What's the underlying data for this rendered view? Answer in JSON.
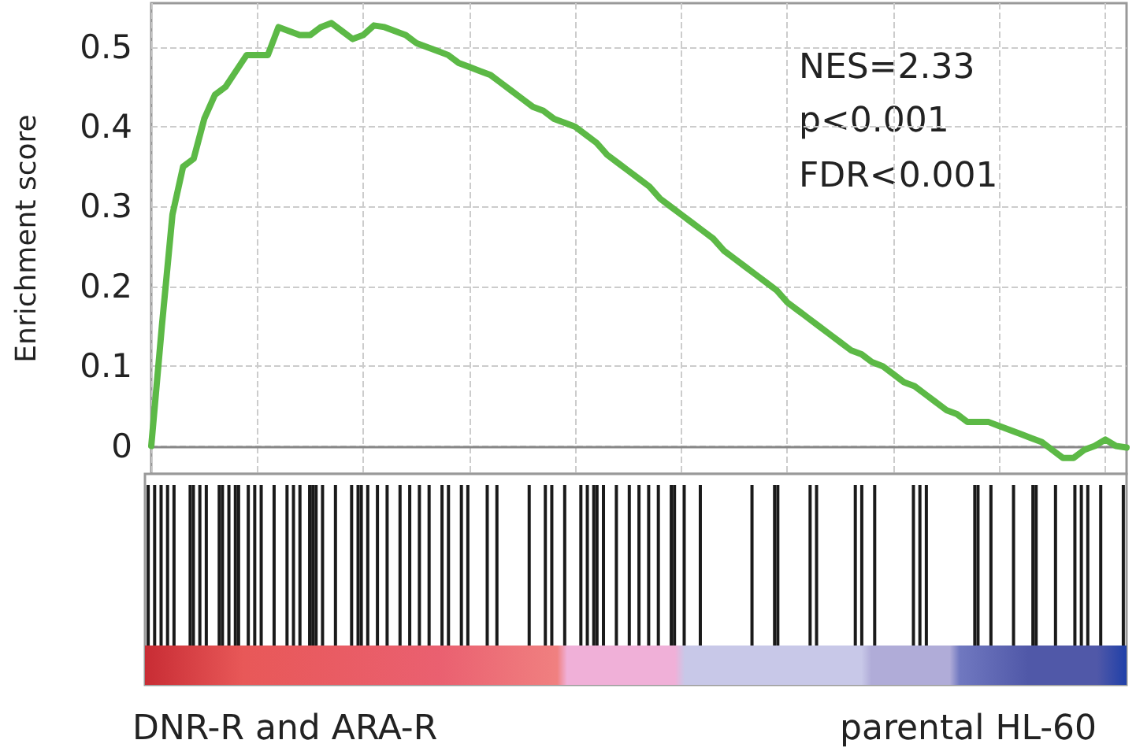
{
  "chart_data": {
    "type": "line",
    "ylabel": "Enrichment score",
    "categories": [
      null,
      null,
      null,
      null,
      null,
      null,
      null,
      null,
      null,
      null,
      null,
      null,
      null,
      null,
      null,
      null,
      null,
      null,
      null,
      null,
      null,
      null,
      null,
      null,
      null,
      null,
      null,
      null,
      null,
      null,
      null,
      null,
      null,
      null,
      null,
      null,
      null,
      null,
      null,
      null,
      null,
      null,
      null,
      null,
      null,
      null,
      null,
      null,
      null,
      null,
      null,
      null,
      null,
      null,
      null,
      null,
      null,
      null,
      null,
      null,
      null,
      null,
      null,
      null,
      null,
      null,
      null,
      null,
      null,
      null,
      null,
      null,
      null,
      null,
      null,
      null,
      null,
      null,
      null,
      null,
      null,
      null,
      null,
      null,
      null,
      null,
      null,
      null,
      null,
      null,
      null,
      null,
      null
    ],
    "series": [
      {
        "color": "#5cb946",
        "values": [
          0,
          0.15,
          0.29,
          0.35,
          0.36,
          0.41,
          0.44,
          0.45,
          0.47,
          0.49,
          0.49,
          0.49,
          0.525,
          0.52,
          0.515,
          0.515,
          0.525,
          0.53,
          0.52,
          0.51,
          0.515,
          0.527,
          0.525,
          0.52,
          0.515,
          0.505,
          0.5,
          0.495,
          0.49,
          0.48,
          0.475,
          0.47,
          0.465,
          0.455,
          0.445,
          0.435,
          0.425,
          0.42,
          0.41,
          0.405,
          0.4,
          0.39,
          0.38,
          0.365,
          0.355,
          0.345,
          0.335,
          0.325,
          0.31,
          0.3,
          0.29,
          0.28,
          0.27,
          0.26,
          0.245,
          0.235,
          0.225,
          0.215,
          0.205,
          0.195,
          0.18,
          0.17,
          0.16,
          0.15,
          0.14,
          0.13,
          0.12,
          0.115,
          0.105,
          0.1,
          0.09,
          0.08,
          0.075,
          0.065,
          0.055,
          0.045,
          0.04,
          0.03,
          0.03,
          0.03,
          0.025,
          0.02,
          0.015,
          0.01,
          0.005,
          -0.005,
          -0.015,
          -0.015,
          -0.005,
          0,
          0.008,
          0,
          -0.002
        ]
      }
    ],
    "ylim": [
      -0.035,
      0.555
    ],
    "yticks": [
      0,
      0.1,
      0.2,
      0.3,
      0.4,
      0.5
    ],
    "tick_labels": "y",
    "grid": true,
    "line_style": "solid",
    "annotations": [
      "NES=2.33",
      "p<0.001",
      "FDR<0.001",
      "DNR-R and ARA-R",
      "parental HL-60"
    ]
  }
}
